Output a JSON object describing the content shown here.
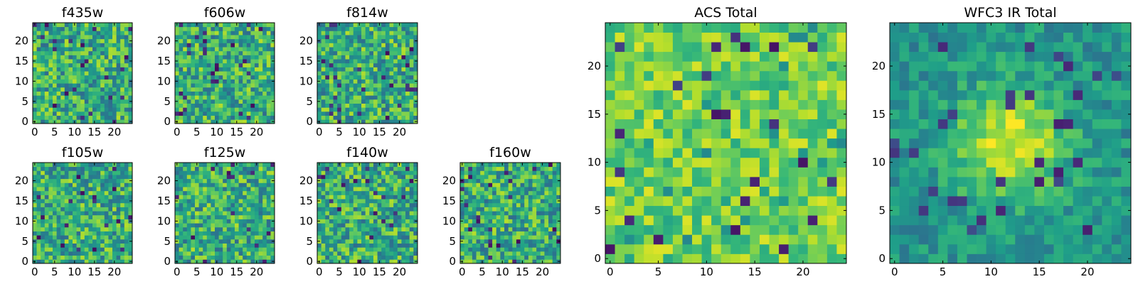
{
  "chart_data": [
    {
      "type": "heatmap",
      "title": "f435w",
      "grid_size": 25,
      "xlim": [
        -0.5,
        24.5
      ],
      "ylim": [
        -0.5,
        24.5
      ],
      "xticks": [
        0,
        5,
        10,
        15,
        20
      ],
      "yticks": [
        0,
        5,
        10,
        15,
        20
      ],
      "colormap": "viridis",
      "pixel_values": "noise-like",
      "grid": false
    },
    {
      "type": "heatmap",
      "title": "f606w",
      "grid_size": 25,
      "xlim": [
        -0.5,
        24.5
      ],
      "ylim": [
        -0.5,
        24.5
      ],
      "xticks": [
        0,
        5,
        10,
        15,
        20
      ],
      "yticks": [
        0,
        5,
        10,
        15,
        20
      ],
      "colormap": "viridis",
      "pixel_values": "noise-like",
      "grid": false
    },
    {
      "type": "heatmap",
      "title": "f814w",
      "grid_size": 25,
      "xlim": [
        -0.5,
        24.5
      ],
      "ylim": [
        -0.5,
        24.5
      ],
      "xticks": [
        0,
        5,
        10,
        15,
        20
      ],
      "yticks": [
        0,
        5,
        10,
        15,
        20
      ],
      "colormap": "viridis",
      "pixel_values": "noise-like",
      "grid": false
    },
    {
      "type": "heatmap",
      "title": "f105w",
      "grid_size": 25,
      "xlim": [
        -0.5,
        24.5
      ],
      "ylim": [
        -0.5,
        24.5
      ],
      "xticks": [
        0,
        5,
        10,
        15,
        20
      ],
      "yticks": [
        0,
        5,
        10,
        15,
        20
      ],
      "colormap": "viridis",
      "pixel_values": "noise-like",
      "grid": false
    },
    {
      "type": "heatmap",
      "title": "f125w",
      "grid_size": 25,
      "xlim": [
        -0.5,
        24.5
      ],
      "ylim": [
        -0.5,
        24.5
      ],
      "xticks": [
        0,
        5,
        10,
        15,
        20
      ],
      "yticks": [
        0,
        5,
        10,
        15,
        20
      ],
      "colormap": "viridis",
      "pixel_values": "noise-like",
      "grid": false
    },
    {
      "type": "heatmap",
      "title": "f140w",
      "grid_size": 25,
      "xlim": [
        -0.5,
        24.5
      ],
      "ylim": [
        -0.5,
        24.5
      ],
      "xticks": [
        0,
        5,
        10,
        15,
        20
      ],
      "yticks": [
        0,
        5,
        10,
        15,
        20
      ],
      "colormap": "viridis",
      "pixel_values": "noise-like",
      "grid": false
    },
    {
      "type": "heatmap",
      "title": "f160w",
      "grid_size": 25,
      "xlim": [
        -0.5,
        24.5
      ],
      "ylim": [
        -0.5,
        24.5
      ],
      "xticks": [
        0,
        5,
        10,
        15,
        20
      ],
      "yticks": [
        0,
        5,
        10,
        15,
        20
      ],
      "colormap": "viridis",
      "pixel_values": "noise-like",
      "grid": false
    },
    {
      "type": "heatmap",
      "title": "ACS Total",
      "grid_size": 25,
      "xlim": [
        -0.5,
        24.5
      ],
      "ylim": [
        -0.5,
        24.5
      ],
      "xticks": [
        0,
        5,
        10,
        15,
        20
      ],
      "yticks": [
        0,
        5,
        10,
        15,
        20
      ],
      "colormap": "viridis",
      "pixel_values": "noise-like, mostly high (yellow-green)",
      "grid": false
    },
    {
      "type": "heatmap",
      "title": "WFC3 IR Total",
      "grid_size": 25,
      "xlim": [
        -0.5,
        24.5
      ],
      "ylim": [
        -0.5,
        24.5
      ],
      "xticks": [
        0,
        5,
        10,
        15,
        20
      ],
      "yticks": [
        0,
        5,
        10,
        15,
        20
      ],
      "colormap": "viridis",
      "pixel_values": "noise with bright central blob near (12, 12)",
      "grid": false
    }
  ]
}
